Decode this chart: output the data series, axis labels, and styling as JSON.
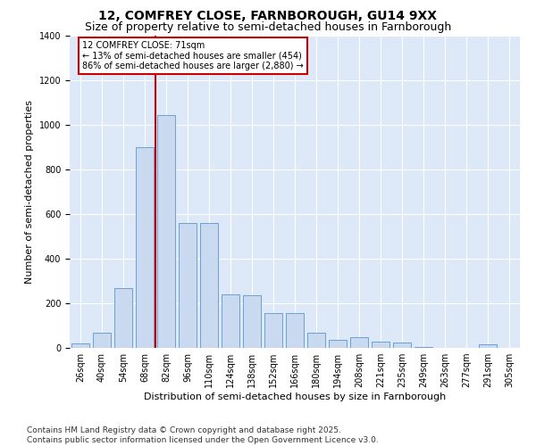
{
  "title1": "12, COMFREY CLOSE, FARNBOROUGH, GU14 9XX",
  "title2": "Size of property relative to semi-detached houses in Farnborough",
  "xlabel": "Distribution of semi-detached houses by size in Farnborough",
  "ylabel": "Number of semi-detached properties",
  "categories": [
    "26sqm",
    "40sqm",
    "54sqm",
    "68sqm",
    "82sqm",
    "96sqm",
    "110sqm",
    "124sqm",
    "138sqm",
    "152sqm",
    "166sqm",
    "180sqm",
    "194sqm",
    "208sqm",
    "221sqm",
    "235sqm",
    "249sqm",
    "263sqm",
    "277sqm",
    "291sqm",
    "305sqm"
  ],
  "values": [
    20,
    70,
    270,
    900,
    1045,
    560,
    560,
    240,
    235,
    155,
    155,
    70,
    35,
    50,
    30,
    25,
    5,
    0,
    0,
    15,
    0
  ],
  "bar_color": "#c9d9ef",
  "bar_edge_color": "#6b9fd4",
  "vline_color": "#cc0000",
  "vline_index": 3.5,
  "annotation_text": "12 COMFREY CLOSE: 71sqm\n← 13% of semi-detached houses are smaller (454)\n86% of semi-detached houses are larger (2,880) →",
  "annotation_box_color": "white",
  "annotation_box_edge_color": "#cc0000",
  "ylim_max": 1400,
  "yticks": [
    0,
    200,
    400,
    600,
    800,
    1000,
    1200,
    1400
  ],
  "bg_color": "#dde8f8",
  "title_fontsize": 10,
  "subtitle_fontsize": 9,
  "axis_fontsize": 8,
  "tick_fontsize": 7,
  "footer_fontsize": 6.5,
  "footer": "Contains HM Land Registry data © Crown copyright and database right 2025.\nContains public sector information licensed under the Open Government Licence v3.0."
}
